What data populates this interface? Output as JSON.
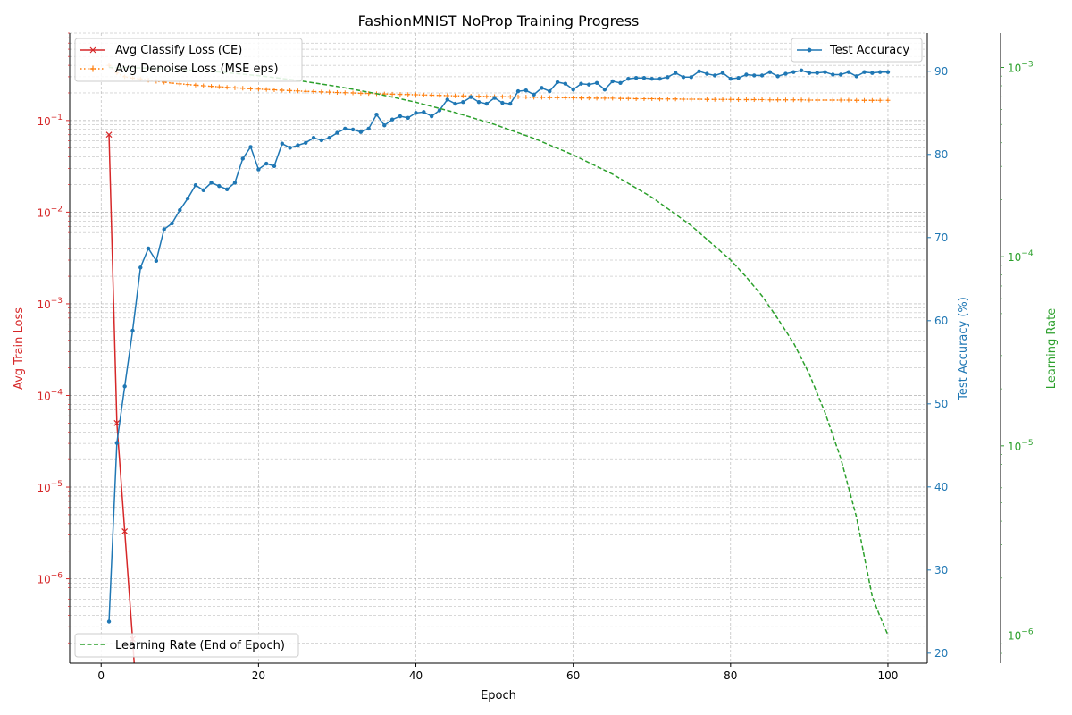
{
  "chart_data": {
    "type": "line",
    "title": "FashionMNIST NoProp Training Progress",
    "xlabel": "Epoch",
    "xlim": [
      -4,
      105
    ],
    "xticks": [
      0,
      20,
      40,
      60,
      80,
      100
    ],
    "grid": true,
    "axes": {
      "loss": {
        "label": "Avg Train Loss",
        "scale": "log",
        "ylim": [
          1.2e-07,
          0.9
        ],
        "color": "#d62728",
        "ticks": [
          {
            "value": 1e-06,
            "base": "10",
            "exp": "−6"
          },
          {
            "value": 1e-05,
            "base": "10",
            "exp": "−5"
          },
          {
            "value": 0.0001,
            "base": "10",
            "exp": "−4"
          },
          {
            "value": 0.001,
            "base": "10",
            "exp": "−3"
          },
          {
            "value": 0.01,
            "base": "10",
            "exp": "−2"
          },
          {
            "value": 0.1,
            "base": "10",
            "exp": "−1"
          }
        ]
      },
      "accuracy": {
        "label": "Test Accuracy (%)",
        "scale": "linear",
        "ylim": [
          18.8,
          94.6
        ],
        "color": "#1f77b4",
        "ticks": [
          20,
          30,
          40,
          50,
          60,
          70,
          80,
          90
        ]
      },
      "lr": {
        "label": "Learning Rate",
        "scale": "log",
        "ylim": [
          7.1e-07,
          0.00152
        ],
        "color": "#2ca02c",
        "ticks": [
          {
            "value": 1e-06,
            "base": "10",
            "exp": "−6"
          },
          {
            "value": 1e-05,
            "base": "10",
            "exp": "−5"
          },
          {
            "value": 0.0001,
            "base": "10",
            "exp": "−4"
          },
          {
            "value": 0.001,
            "base": "10",
            "exp": "−3"
          }
        ]
      }
    },
    "legends": {
      "upper_left": [
        "Avg Classify Loss (CE)",
        "Avg Denoise Loss (MSE eps)"
      ],
      "upper_right": [
        "Test Accuracy"
      ],
      "lower_left": [
        "Learning Rate (End of Epoch)"
      ]
    },
    "series": [
      {
        "name": "Avg Classify Loss (CE)",
        "axis": "loss",
        "color": "#d62728",
        "style": "solid",
        "marker": "x",
        "x": [
          1,
          2,
          3,
          4,
          4.2
        ],
        "values": [
          0.07,
          5e-05,
          3.3e-06,
          2.2e-07,
          1.2e-07
        ]
      },
      {
        "name": "Avg Denoise Loss (MSE eps)",
        "axis": "loss",
        "color": "#ff7f0e",
        "style": "dotted",
        "marker": "+",
        "x": [
          1,
          2,
          3,
          4,
          5,
          6,
          7,
          8,
          9,
          10,
          11,
          12,
          13,
          14,
          15,
          16,
          17,
          18,
          19,
          20,
          21,
          22,
          23,
          24,
          25,
          26,
          27,
          28,
          29,
          30,
          31,
          32,
          33,
          34,
          35,
          36,
          37,
          38,
          39,
          40,
          41,
          42,
          43,
          44,
          45,
          46,
          47,
          48,
          49,
          50,
          51,
          52,
          53,
          54,
          55,
          56,
          57,
          58,
          59,
          60,
          61,
          62,
          63,
          64,
          65,
          66,
          67,
          68,
          69,
          70,
          71,
          72,
          73,
          74,
          75,
          76,
          77,
          78,
          79,
          80,
          81,
          82,
          83,
          84,
          85,
          86,
          87,
          88,
          89,
          90,
          91,
          92,
          93,
          94,
          95,
          96,
          97,
          98,
          99,
          100
        ],
        "values": [
          0.4,
          0.33,
          0.3,
          0.29,
          0.285,
          0.275,
          0.268,
          0.262,
          0.256,
          0.251,
          0.247,
          0.243,
          0.239,
          0.236,
          0.233,
          0.23,
          0.227,
          0.225,
          0.222,
          0.22,
          0.218,
          0.216,
          0.214,
          0.212,
          0.21,
          0.208,
          0.207,
          0.205,
          0.204,
          0.202,
          0.201,
          0.2,
          0.198,
          0.197,
          0.196,
          0.195,
          0.194,
          0.193,
          0.192,
          0.191,
          0.19,
          0.189,
          0.188,
          0.187,
          0.186,
          0.186,
          0.185,
          0.184,
          0.183,
          0.183,
          0.182,
          0.181,
          0.181,
          0.18,
          0.179,
          0.179,
          0.178,
          0.178,
          0.177,
          0.177,
          0.176,
          0.176,
          0.175,
          0.175,
          0.175,
          0.174,
          0.174,
          0.173,
          0.173,
          0.173,
          0.172,
          0.172,
          0.172,
          0.171,
          0.171,
          0.171,
          0.17,
          0.17,
          0.17,
          0.17,
          0.169,
          0.169,
          0.169,
          0.169,
          0.168,
          0.168,
          0.168,
          0.168,
          0.168,
          0.167,
          0.167,
          0.167,
          0.167,
          0.167,
          0.167,
          0.166,
          0.166,
          0.166,
          0.166,
          0.166
        ]
      },
      {
        "name": "Test Accuracy",
        "axis": "accuracy",
        "color": "#1f77b4",
        "style": "solid",
        "marker": "o",
        "x": [
          1,
          2,
          3,
          4,
          5,
          6,
          7,
          8,
          9,
          10,
          11,
          12,
          13,
          14,
          15,
          16,
          17,
          18,
          19,
          20,
          21,
          22,
          23,
          24,
          25,
          26,
          27,
          28,
          29,
          30,
          31,
          32,
          33,
          34,
          35,
          36,
          37,
          38,
          39,
          40,
          41,
          42,
          43,
          44,
          45,
          46,
          47,
          48,
          49,
          50,
          51,
          52,
          53,
          54,
          55,
          56,
          57,
          58,
          59,
          60,
          61,
          62,
          63,
          64,
          65,
          66,
          67,
          68,
          69,
          70,
          71,
          72,
          73,
          74,
          75,
          76,
          77,
          78,
          79,
          80,
          81,
          82,
          83,
          84,
          85,
          86,
          87,
          88,
          89,
          90,
          91,
          92,
          93,
          94,
          95,
          96,
          97,
          98,
          99,
          100
        ],
        "values": [
          23.8,
          45.3,
          52.1,
          58.8,
          66.4,
          68.7,
          67.2,
          71.0,
          71.7,
          73.3,
          74.7,
          76.3,
          75.7,
          76.6,
          76.2,
          75.8,
          76.6,
          79.5,
          80.9,
          78.2,
          78.9,
          78.6,
          81.3,
          80.8,
          81.1,
          81.4,
          82.0,
          81.7,
          82.0,
          82.6,
          83.1,
          83.0,
          82.7,
          83.1,
          84.8,
          83.5,
          84.2,
          84.6,
          84.4,
          85.0,
          85.1,
          84.6,
          85.3,
          86.6,
          86.1,
          86.3,
          86.9,
          86.3,
          86.1,
          86.8,
          86.2,
          86.1,
          87.6,
          87.7,
          87.2,
          88.0,
          87.6,
          88.7,
          88.5,
          87.8,
          88.5,
          88.4,
          88.6,
          87.8,
          88.8,
          88.6,
          89.1,
          89.2,
          89.2,
          89.1,
          89.1,
          89.3,
          89.8,
          89.3,
          89.3,
          90.0,
          89.7,
          89.5,
          89.8,
          89.1,
          89.2,
          89.6,
          89.5,
          89.5,
          89.9,
          89.4,
          89.7,
          89.9,
          90.1,
          89.8,
          89.8,
          89.9,
          89.6,
          89.6,
          89.9,
          89.4,
          89.9,
          89.8,
          89.9,
          89.9
        ]
      },
      {
        "name": "Learning Rate (End of Epoch)",
        "axis": "lr",
        "color": "#2ca02c",
        "style": "dashed",
        "marker": "",
        "x": [
          1,
          5,
          10,
          15,
          20,
          25,
          30,
          35,
          40,
          45,
          50,
          55,
          60,
          65,
          70,
          75,
          80,
          82,
          84,
          86,
          88,
          90,
          92,
          94,
          96,
          98,
          99,
          100
        ],
        "values": [
          0.0009998,
          0.000994,
          0.000976,
          0.000946,
          0.000905,
          0.000854,
          0.000794,
          0.000727,
          0.000655,
          0.000578,
          0.0005,
          0.000422,
          0.000345,
          0.000273,
          0.000206,
          0.000146,
          9.6e-05,
          7.8e-05,
          6.2e-05,
          4.7e-05,
          3.5e-05,
          2.4e-05,
          1.5e-05,
          8.6e-06,
          4.2e-06,
          1.6e-06,
          1.25e-06,
          1e-06
        ]
      }
    ]
  }
}
